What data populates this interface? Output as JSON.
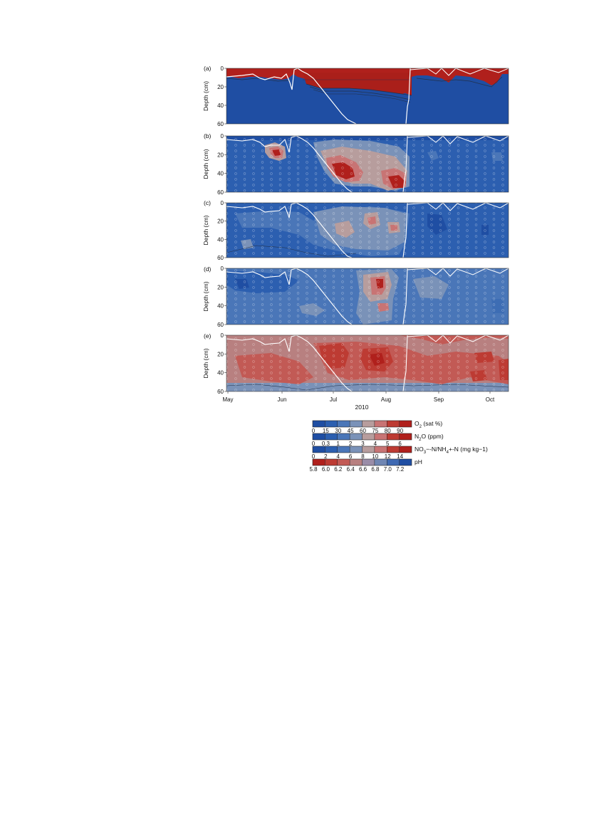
{
  "figure": {
    "year": "2010",
    "ylabel": "Depth (cm)",
    "month_ticks": [
      "May",
      "Jun",
      "Jul",
      "Aug",
      "Sep",
      "Oct"
    ],
    "depth_ticks": [
      "0",
      "20",
      "40",
      "60"
    ]
  },
  "chart_data": {
    "type": "heatmap",
    "x_axis": {
      "label": "2010",
      "categories": [
        "May",
        "Jun",
        "Jul",
        "Aug",
        "Sep",
        "Oct"
      ]
    },
    "y_axis": {
      "label": "Depth (cm)",
      "range": [
        60,
        0
      ],
      "ticks": [
        0,
        20,
        40,
        60
      ],
      "reversed": true
    },
    "panels": [
      {
        "id": "(a)",
        "variable": "O2 (sat %)",
        "description_values": {
          "high_zone_depth_max_cm": 35,
          "low_below_cm": 20
        }
      },
      {
        "id": "(b)",
        "variable": "N2O (ppm)"
      },
      {
        "id": "(c)",
        "variable": "NO3−-N (mg kg−1)"
      },
      {
        "id": "(d)",
        "variable": "NH4+-N (mg kg−1)"
      },
      {
        "id": "(e)",
        "variable": "pH"
      }
    ],
    "colorbars": [
      {
        "label_main": "O",
        "label_sub": "2",
        "label_rest": " (sat %)",
        "ticks": [
          "0",
          "15",
          "30",
          "45",
          "60",
          "75",
          "80",
          "90"
        ],
        "colors": [
          "#1f4ea3",
          "#2c5fb0",
          "#4a76b8",
          "#7a92b8",
          "#b79d9d",
          "#c87474",
          "#bd3b33",
          "#b0201c"
        ]
      },
      {
        "label_main": "N",
        "label_sub": "2",
        "label_rest": "O (ppm)",
        "ticks": [
          "0",
          "0.3",
          "1",
          "2",
          "3",
          "4",
          "5",
          "6"
        ],
        "colors": [
          "#1f4ea3",
          "#2c5fb0",
          "#4a76b8",
          "#7a92b8",
          "#b79d9d",
          "#c87474",
          "#bd3b33",
          "#b0201c"
        ]
      },
      {
        "label_main": "NO",
        "label_sub": "3",
        "label_rest": "−-N/NH",
        "label_sub2": "4",
        "label_rest2": "+-N (mg kg−1)",
        "ticks": [
          "0",
          "2",
          "4",
          "6",
          "8",
          "10",
          "12",
          "14"
        ],
        "colors": [
          "#1f4ea3",
          "#2c5fb0",
          "#4a76b8",
          "#7a92b8",
          "#b79d9d",
          "#c87474",
          "#bd3b33",
          "#b0201c"
        ]
      },
      {
        "label_main": "pH",
        "label_sub": "",
        "label_rest": "",
        "ticks": [
          "5.8",
          "6.0",
          "6.2",
          "6.4",
          "6.6",
          "6.8",
          "7.0",
          "7.2"
        ],
        "colors": [
          "#b0201c",
          "#bd3b33",
          "#c25a55",
          "#b88080",
          "#9a8da8",
          "#6f86b3",
          "#3f69b2",
          "#1f4ea3"
        ]
      }
    ]
  },
  "colors": {
    "low": "#1f4ea3",
    "mid": "#7a92b8",
    "high": "#b0201c",
    "water_table_line": "#ffffff"
  }
}
